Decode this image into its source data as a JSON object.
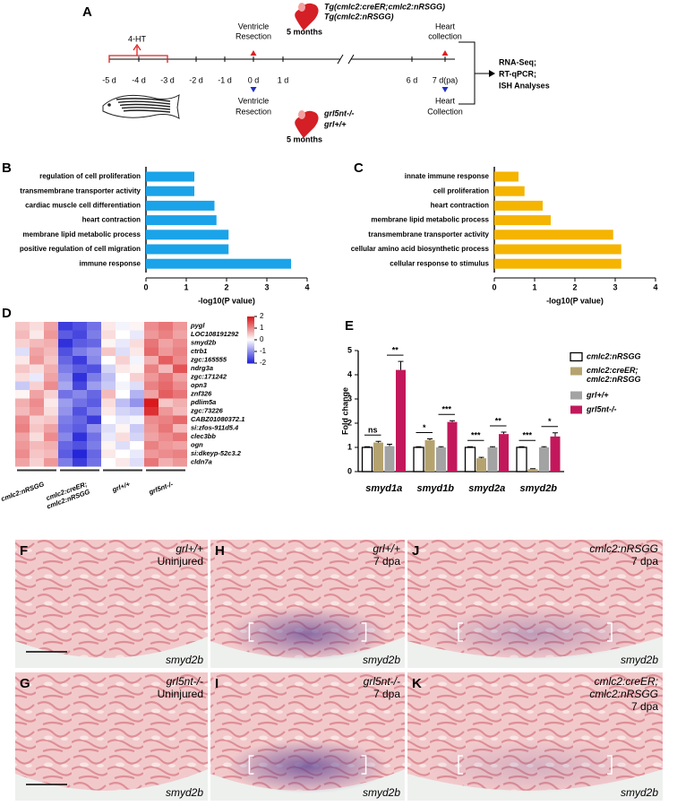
{
  "diagram": {
    "letter": "A",
    "top_lines": [
      "Tg(cmlc2:creER;cmlc2:nRSGG)",
      "Tg(cmlc2:nRSGG)"
    ],
    "top_age": "5 months",
    "treatment": "4-HT",
    "resection_top": [
      "Ventricle",
      "Resection"
    ],
    "collection_top": [
      "Heart",
      "collection"
    ],
    "ticks": [
      "-5 d",
      "-4 d",
      "-3 d",
      "-2 d",
      "-1 d",
      "0 d",
      "1 d",
      "6 d",
      "7 d(pa)"
    ],
    "resection_bottom": [
      "Ventricle",
      "Resection"
    ],
    "collection_bottom": [
      "Heart",
      "Collection"
    ],
    "bottom_lines": [
      "grl5nt-/-",
      "grl+/+"
    ],
    "bottom_age": "5 months",
    "analyses": [
      "RNA-Seq;",
      "RT-qPCR;",
      "ISH Analyses"
    ]
  },
  "chart_data": [
    {
      "type": "hbar",
      "letter": "B",
      "color": "#1aa3e8",
      "categories": [
        "regulation of cell proliferation",
        "transmembrane transporter activity",
        "cardiac muscle cell differentiation",
        "heart contraction",
        "membrane lipid metabolic process",
        "positive regulation of cell migration",
        "immune response"
      ],
      "values": [
        1.2,
        1.2,
        1.7,
        1.75,
        2.05,
        2.05,
        3.6
      ],
      "xlim": [
        0,
        4
      ],
      "xticks": [
        0,
        1,
        2,
        3,
        4
      ],
      "xlabel": "-log10(P value)"
    },
    {
      "type": "hbar",
      "letter": "C",
      "color": "#f5b400",
      "categories": [
        "innate immune response",
        "cell proliferation",
        "heart contraction",
        "membrane lipid metabolic process",
        "transmembrane transporter activity",
        "cellular amino acid biosynthetic process",
        "cellular response to stimulus"
      ],
      "values": [
        0.6,
        0.75,
        1.2,
        1.4,
        2.95,
        3.15,
        3.15
      ],
      "xlim": [
        0,
        4
      ],
      "xticks": [
        0,
        1,
        2,
        3,
        4
      ],
      "xlabel": "-log10(P value)"
    },
    {
      "type": "heatmap",
      "letter": "D",
      "rows": [
        "pygl",
        "LOC108191292",
        "smyd2b",
        "ctrb1",
        "zgc:165555",
        "ndrg3a",
        "zgc:171242",
        "opn3",
        "znf326",
        "pdlim5a",
        "zgc:73226",
        "CABZ01080372.1",
        "si:zfos-911d5.4",
        "clec3bb",
        "ogn",
        "si:dkeyp-52c3.2",
        "cldn7a"
      ],
      "groups": [
        "cmlc2:nRSGG",
        "cmlc2:creER;cmlc2:nRSGG",
        "grl+/+",
        "grl5nt-/-"
      ],
      "values": [
        [
          0.5,
          0.3,
          0.8,
          -1.8,
          -1.6,
          -1.3,
          0.2,
          -0.1,
          0.1,
          1.0,
          1.2,
          0.9
        ],
        [
          0.6,
          0.2,
          0.9,
          -1.5,
          -1.7,
          -1.2,
          0.3,
          0.0,
          -0.2,
          0.9,
          1.1,
          0.8
        ],
        [
          0.4,
          0.6,
          0.7,
          -1.9,
          -1.5,
          -1.4,
          0.1,
          -0.2,
          0.3,
          1.2,
          0.8,
          1.0
        ],
        [
          -0.3,
          0.8,
          0.6,
          -1.6,
          -1.2,
          -1.0,
          0.5,
          -0.3,
          0.2,
          1.3,
          0.9,
          1.1
        ],
        [
          0.2,
          0.9,
          0.5,
          -1.4,
          -1.8,
          -1.1,
          0.0,
          0.4,
          -0.1,
          0.7,
          1.4,
          1.0
        ],
        [
          0.5,
          0.3,
          0.7,
          -1.2,
          -1.5,
          -1.6,
          -0.4,
          0.2,
          0.1,
          1.1,
          0.6,
          1.5
        ],
        [
          0.3,
          -0.2,
          0.8,
          -1.0,
          -1.9,
          -1.2,
          -0.6,
          0.0,
          0.4,
          0.9,
          1.2,
          0.8
        ],
        [
          -0.5,
          0.4,
          1.0,
          -0.8,
          -1.7,
          -0.9,
          -0.5,
          -0.1,
          -0.3,
          1.1,
          1.3,
          1.0
        ],
        [
          0.1,
          0.8,
          0.4,
          -1.3,
          -1.1,
          -1.4,
          0.6,
          0.0,
          -0.7,
          0.8,
          1.4,
          1.2
        ],
        [
          0.7,
          1.0,
          0.2,
          -0.9,
          -1.3,
          -1.5,
          0.3,
          -0.6,
          -1.0,
          2.0,
          0.5,
          0.7
        ],
        [
          0.6,
          0.9,
          0.3,
          -1.0,
          -1.6,
          -1.2,
          0.2,
          -0.4,
          -0.5,
          1.8,
          0.9,
          0.6
        ],
        [
          1.0,
          0.4,
          0.5,
          -1.2,
          -1.4,
          -1.8,
          0.0,
          -0.2,
          -0.1,
          1.0,
          1.1,
          1.3
        ],
        [
          1.1,
          0.5,
          0.8,
          -1.3,
          -1.5,
          -1.0,
          -0.3,
          0.1,
          -0.5,
          0.9,
          1.2,
          0.6
        ],
        [
          0.8,
          0.3,
          1.0,
          -1.1,
          -1.9,
          -1.3,
          -0.2,
          0.3,
          -0.4,
          0.8,
          1.0,
          1.2
        ],
        [
          0.9,
          0.6,
          0.7,
          -1.4,
          -1.6,
          -1.2,
          0.1,
          -0.3,
          0.0,
          1.1,
          0.9,
          0.8
        ],
        [
          1.0,
          0.5,
          0.6,
          -1.5,
          -2.0,
          -1.4,
          0.2,
          0.0,
          -0.2,
          0.9,
          1.0,
          1.1
        ],
        [
          0.8,
          0.4,
          0.9,
          -1.2,
          -1.8,
          -1.3,
          0.0,
          0.2,
          -0.3,
          1.2,
          0.7,
          0.9
        ]
      ],
      "zlim": [
        -2,
        2
      ],
      "zticks": [
        2,
        1,
        0,
        -1,
        -2
      ],
      "colors": [
        "#2626d9",
        "#ffffff",
        "#d9191c"
      ]
    },
    {
      "type": "grouped_bar",
      "letter": "E",
      "ylabel": "Fold change",
      "categories": [
        "smyd1a",
        "smyd1b",
        "smyd2a",
        "smyd2b"
      ],
      "series": [
        {
          "name": "cmlc2:nRSGG",
          "color": "#ffffff",
          "values": [
            1.0,
            1.0,
            1.0,
            1.0
          ],
          "errors": [
            0.03,
            0.03,
            0.03,
            0.03
          ]
        },
        {
          "name": "cmlc2:creER;cmlc2:nRSGG",
          "color": "#b5a36f",
          "values": [
            1.2,
            1.3,
            0.55,
            0.1
          ],
          "errors": [
            0.05,
            0.05,
            0.04,
            0.02
          ]
        },
        {
          "name": "grl+/+",
          "color": "#a3a3a3",
          "values": [
            1.05,
            1.0,
            1.0,
            1.0
          ],
          "errors": [
            0.08,
            0.03,
            0.03,
            0.03
          ]
        },
        {
          "name": "grl5nt-/-",
          "color": "#c2185b",
          "values": [
            4.2,
            2.05,
            1.55,
            1.45
          ],
          "errors": [
            0.35,
            0.05,
            0.08,
            0.15
          ]
        }
      ],
      "significance": [
        [
          "ns",
          "**"
        ],
        [
          "*",
          "***"
        ],
        [
          "***",
          "**"
        ],
        [
          "***",
          "*"
        ]
      ],
      "ylim": [
        0,
        5
      ],
      "yticks": [
        0,
        1,
        2,
        3,
        4,
        5
      ]
    }
  ],
  "micrographs": [
    {
      "letter": "F",
      "lines": [
        "grl+/+",
        "Uninjured"
      ],
      "stain": "smyd2b"
    },
    {
      "letter": "H",
      "lines": [
        "grl+/+",
        "7 dpa"
      ],
      "stain": "smyd2b"
    },
    {
      "letter": "J",
      "lines": [
        "cmlc2:nRSGG",
        "7 dpa"
      ],
      "stain": "smyd2b"
    },
    {
      "letter": "G",
      "lines": [
        "grl5nt-/-",
        "Uninjured"
      ],
      "stain": "smyd2b"
    },
    {
      "letter": "I",
      "lines": [
        "grl5nt-/-",
        "7 dpa"
      ],
      "stain": "smyd2b"
    },
    {
      "letter": "K",
      "lines": [
        "cmlc2:creER;",
        "cmlc2:nRSGG",
        "7 dpa"
      ],
      "stain": "smyd2b"
    }
  ]
}
